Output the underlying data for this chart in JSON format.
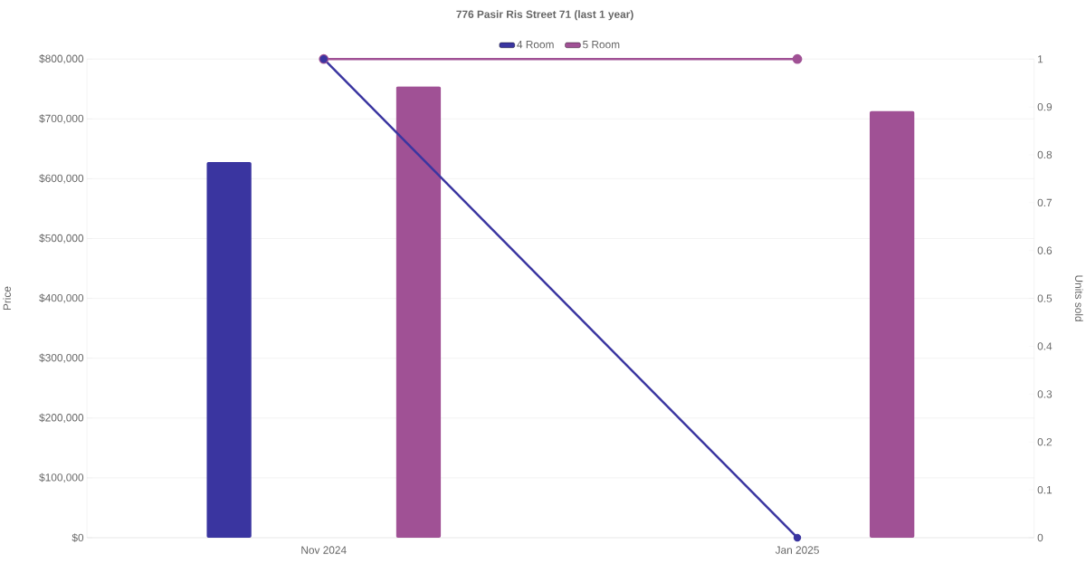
{
  "chart_data": {
    "type": "bar",
    "title": "776 Pasir Ris Street 71 (last 1 year)",
    "categories": [
      "Nov 2024",
      "Jan 2025"
    ],
    "series": [
      {
        "name": "4 Room",
        "color": "#3a35a0",
        "values": [
          628000,
          null
        ]
      },
      {
        "name": "5 Room",
        "color": "#a05195",
        "values": [
          754000,
          713000
        ]
      },
      {
        "type": "line",
        "axis": "y2",
        "marker": "circle",
        "color": "#3a35a0",
        "values": [
          1,
          0
        ]
      },
      {
        "type": "line",
        "axis": "y2",
        "marker": "circle",
        "color": "#a05195",
        "values": [
          1,
          1
        ]
      }
    ],
    "ylabel": "Price",
    "y2label": "Units sold",
    "ylim": [
      0,
      800000
    ],
    "yticks": [
      {
        "value": 0,
        "label": "$0"
      },
      {
        "value": 100000,
        "label": "$100,000"
      },
      {
        "value": 200000,
        "label": "$200,000"
      },
      {
        "value": 300000,
        "label": "$300,000"
      },
      {
        "value": 400000,
        "label": "$400,000"
      },
      {
        "value": 500000,
        "label": "$500,000"
      },
      {
        "value": 600000,
        "label": "$600,000"
      },
      {
        "value": 700000,
        "label": "$700,000"
      },
      {
        "value": 800000,
        "label": "$800,000"
      }
    ],
    "y2lim": [
      0,
      1
    ],
    "y2ticks": [
      0,
      0.1,
      0.2,
      0.3,
      0.4,
      0.5,
      0.6,
      0.7,
      0.8,
      0.9,
      1
    ],
    "grid": "y",
    "legend": "top"
  }
}
